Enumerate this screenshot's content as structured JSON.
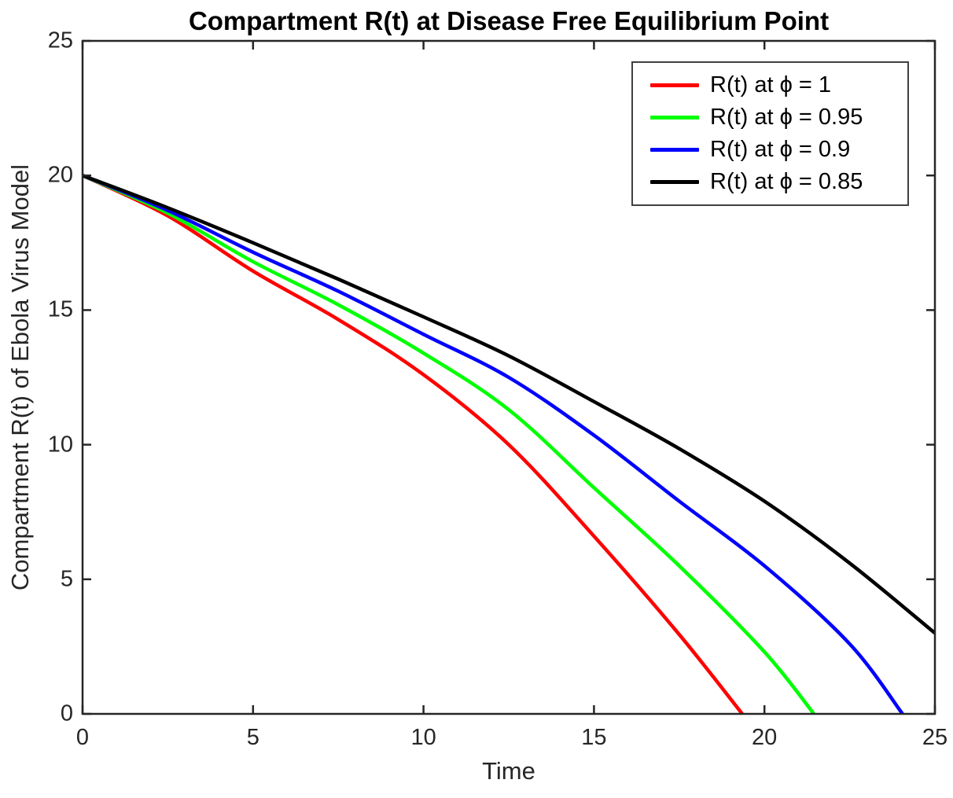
{
  "figure": {
    "title": "Compartment R(t) at Disease Free Equilibrium Point",
    "xlabel": "Time",
    "ylabel": "Compartment R(t) of Ebola Virus Model"
  },
  "chart_data": {
    "type": "line",
    "title": "Compartment R(t) at Disease Free Equilibrium Point",
    "xlabel": "Time",
    "ylabel": "Compartment R(t) of Ebola Virus Model",
    "xlim": [
      0,
      25
    ],
    "ylim": [
      0,
      25
    ],
    "xticks": [
      0,
      5,
      10,
      15,
      20,
      25
    ],
    "yticks": [
      0,
      5,
      10,
      15,
      20,
      25
    ],
    "grid": false,
    "box": true,
    "tick_direction": "in",
    "axis_color": "#262626",
    "legend_position": "top-right",
    "series": [
      {
        "name": "R(t) at ϕ = 1",
        "color": "#ff0000",
        "x": [
          0,
          2.5,
          5,
          7.5,
          10,
          12.5,
          15,
          17.5,
          19.35
        ],
        "y": [
          20,
          18.5,
          16.45,
          14.65,
          12.6,
          10.0,
          6.6,
          2.95,
          0
        ]
      },
      {
        "name": "R(t) at ϕ = 0.95",
        "color": "#00ff00",
        "x": [
          0,
          2.5,
          5,
          7.5,
          10,
          12.5,
          15,
          17.5,
          20,
          21.45
        ],
        "y": [
          20,
          18.6,
          16.8,
          15.2,
          13.4,
          11.3,
          8.4,
          5.5,
          2.3,
          0
        ]
      },
      {
        "name": "R(t) at ϕ = 0.9",
        "color": "#0000ff",
        "x": [
          0,
          2.5,
          5,
          7.5,
          10,
          12.5,
          15,
          17.5,
          20,
          22.5,
          24.05
        ],
        "y": [
          20,
          18.7,
          17.15,
          15.7,
          14.1,
          12.5,
          10.35,
          7.9,
          5.5,
          2.6,
          0
        ]
      },
      {
        "name": "R(t) at ϕ = 0.85",
        "color": "#000000",
        "x": [
          0,
          2.5,
          5,
          7.5,
          10,
          12.5,
          15,
          17.5,
          20,
          22.5,
          25
        ],
        "y": [
          20,
          18.8,
          17.5,
          16.15,
          14.75,
          13.3,
          11.6,
          9.85,
          7.9,
          5.6,
          3.0
        ]
      }
    ]
  }
}
